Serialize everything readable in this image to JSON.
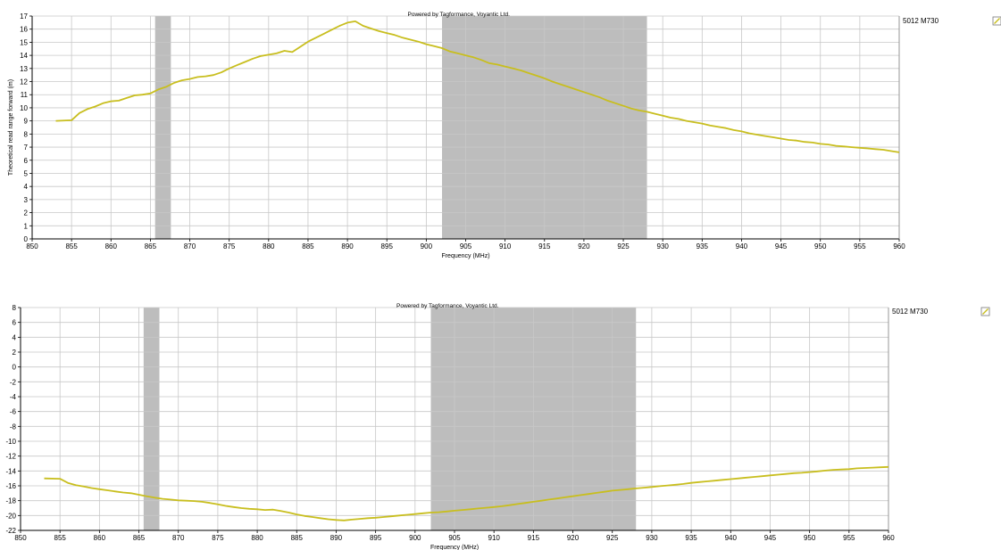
{
  "chart_data": [
    {
      "type": "line",
      "watermark": "Powered by Tagformance, Voyantic Ltd.",
      "xlabel": "Frequency (MHz)",
      "ylabel": "Theoretical read range forward (m)",
      "xlim": [
        850,
        960
      ],
      "ylim": [
        0,
        17
      ],
      "xticks": [
        850,
        855,
        860,
        865,
        870,
        875,
        880,
        885,
        890,
        895,
        900,
        905,
        910,
        915,
        920,
        925,
        930,
        935,
        940,
        945,
        950,
        955,
        960
      ],
      "yticks": [
        0,
        1,
        2,
        3,
        4,
        5,
        6,
        7,
        8,
        9,
        10,
        11,
        12,
        13,
        14,
        15,
        16,
        17
      ],
      "grid": true,
      "legend_placement": "right",
      "shaded_bands": [
        [
          865.6,
          867.6
        ],
        [
          902,
          928
        ]
      ],
      "colors": {
        "line": "#c8be1e",
        "band": "#bdbdbd",
        "grid": "#c8c8c8"
      },
      "series": [
        {
          "name": "5012 M730",
          "x": [
            853,
            855,
            856,
            857,
            858,
            859,
            860,
            861,
            862,
            863,
            864,
            865,
            866,
            867,
            868,
            869,
            870,
            871,
            872,
            873,
            874,
            875,
            876,
            877,
            878,
            879,
            880,
            881,
            882,
            883,
            884,
            885,
            886,
            887,
            888,
            889,
            890,
            891,
            892,
            893,
            894,
            895,
            896,
            897,
            898,
            899,
            900,
            901,
            902,
            903,
            904,
            905,
            906,
            907,
            908,
            909,
            910,
            911,
            912,
            913,
            914,
            915,
            916,
            917,
            918,
            919,
            920,
            921,
            922,
            923,
            924,
            925,
            926,
            927,
            928,
            929,
            930,
            931,
            932,
            933,
            934,
            935,
            936,
            937,
            938,
            939,
            940,
            941,
            942,
            943,
            944,
            945,
            946,
            947,
            948,
            949,
            950,
            951,
            952,
            953,
            954,
            955,
            956,
            957,
            958,
            959,
            960
          ],
          "values": [
            9.0,
            9.05,
            9.6,
            9.9,
            10.1,
            10.35,
            10.5,
            10.55,
            10.75,
            10.95,
            11.0,
            11.1,
            11.4,
            11.6,
            11.9,
            12.1,
            12.2,
            12.35,
            12.4,
            12.5,
            12.7,
            13.0,
            13.25,
            13.5,
            13.75,
            13.95,
            14.05,
            14.15,
            14.35,
            14.25,
            14.65,
            15.05,
            15.35,
            15.65,
            15.95,
            16.25,
            16.5,
            16.6,
            16.25,
            16.05,
            15.85,
            15.7,
            15.55,
            15.35,
            15.2,
            15.05,
            14.85,
            14.7,
            14.55,
            14.3,
            14.15,
            14.0,
            13.85,
            13.65,
            13.4,
            13.3,
            13.15,
            13.0,
            12.85,
            12.65,
            12.45,
            12.25,
            12.0,
            11.8,
            11.6,
            11.4,
            11.2,
            11.0,
            10.8,
            10.55,
            10.35,
            10.15,
            9.95,
            9.8,
            9.7,
            9.55,
            9.4,
            9.25,
            9.15,
            9.0,
            8.9,
            8.8,
            8.65,
            8.55,
            8.45,
            8.3,
            8.2,
            8.05,
            7.95,
            7.85,
            7.75,
            7.65,
            7.55,
            7.5,
            7.4,
            7.35,
            7.25,
            7.2,
            7.1,
            7.05,
            7.0,
            6.95,
            6.9,
            6.85,
            6.8,
            6.7,
            6.6
          ]
        }
      ]
    },
    {
      "type": "line",
      "watermark": "Powered by Tagformance, Voyantic Ltd.",
      "xlabel": "Frequency (MHz)",
      "ylabel": "",
      "xlim": [
        850,
        960
      ],
      "ylim": [
        -22,
        8
      ],
      "xticks": [
        850,
        855,
        860,
        865,
        870,
        875,
        880,
        885,
        890,
        895,
        900,
        905,
        910,
        915,
        920,
        925,
        930,
        935,
        940,
        945,
        950,
        955,
        960
      ],
      "yticks": [
        -22,
        -20,
        -18,
        -16,
        -14,
        -12,
        -10,
        -8,
        -6,
        -4,
        -2,
        0,
        2,
        4,
        6,
        8
      ],
      "grid": true,
      "legend_placement": "right",
      "shaded_bands": [
        [
          865.6,
          867.6
        ],
        [
          902,
          928
        ]
      ],
      "colors": {
        "line": "#c8be1e",
        "band": "#bdbdbd",
        "grid": "#c8c8c8"
      },
      "series": [
        {
          "name": "5012 M730",
          "x": [
            853,
            855,
            856,
            857,
            858,
            859,
            860,
            861,
            862,
            863,
            864,
            865,
            866,
            867,
            868,
            869,
            870,
            871,
            872,
            873,
            874,
            875,
            876,
            877,
            878,
            879,
            880,
            881,
            882,
            883,
            884,
            885,
            886,
            887,
            888,
            889,
            890,
            891,
            892,
            893,
            894,
            895,
            896,
            897,
            898,
            899,
            900,
            901,
            902,
            903,
            904,
            905,
            906,
            907,
            908,
            909,
            910,
            911,
            912,
            913,
            914,
            915,
            916,
            917,
            918,
            919,
            920,
            921,
            922,
            923,
            924,
            925,
            926,
            927,
            928,
            929,
            930,
            931,
            932,
            933,
            934,
            935,
            936,
            937,
            938,
            939,
            940,
            941,
            942,
            943,
            944,
            945,
            946,
            947,
            948,
            949,
            950,
            951,
            952,
            953,
            954,
            955,
            956,
            957,
            958,
            959,
            960
          ],
          "values": [
            -15.0,
            -15.05,
            -15.6,
            -15.9,
            -16.1,
            -16.3,
            -16.45,
            -16.6,
            -16.75,
            -16.9,
            -17.0,
            -17.2,
            -17.4,
            -17.6,
            -17.75,
            -17.85,
            -17.95,
            -18.0,
            -18.05,
            -18.15,
            -18.3,
            -18.5,
            -18.7,
            -18.85,
            -19.0,
            -19.1,
            -19.15,
            -19.25,
            -19.2,
            -19.4,
            -19.6,
            -19.85,
            -20.05,
            -20.2,
            -20.35,
            -20.5,
            -20.6,
            -20.65,
            -20.55,
            -20.45,
            -20.35,
            -20.3,
            -20.2,
            -20.1,
            -20.0,
            -19.9,
            -19.8,
            -19.7,
            -19.6,
            -19.55,
            -19.45,
            -19.35,
            -19.25,
            -19.15,
            -19.05,
            -18.95,
            -18.85,
            -18.75,
            -18.6,
            -18.45,
            -18.3,
            -18.15,
            -18.0,
            -17.85,
            -17.7,
            -17.55,
            -17.4,
            -17.25,
            -17.1,
            -16.95,
            -16.8,
            -16.65,
            -16.55,
            -16.45,
            -16.35,
            -16.25,
            -16.15,
            -16.05,
            -15.95,
            -15.85,
            -15.75,
            -15.6,
            -15.5,
            -15.4,
            -15.3,
            -15.2,
            -15.1,
            -15.0,
            -14.9,
            -14.8,
            -14.7,
            -14.6,
            -14.5,
            -14.4,
            -14.3,
            -14.25,
            -14.15,
            -14.05,
            -13.95,
            -13.85,
            -13.8,
            -13.75,
            -13.65,
            -13.6,
            -13.55,
            -13.5,
            -13.45
          ]
        }
      ]
    }
  ]
}
